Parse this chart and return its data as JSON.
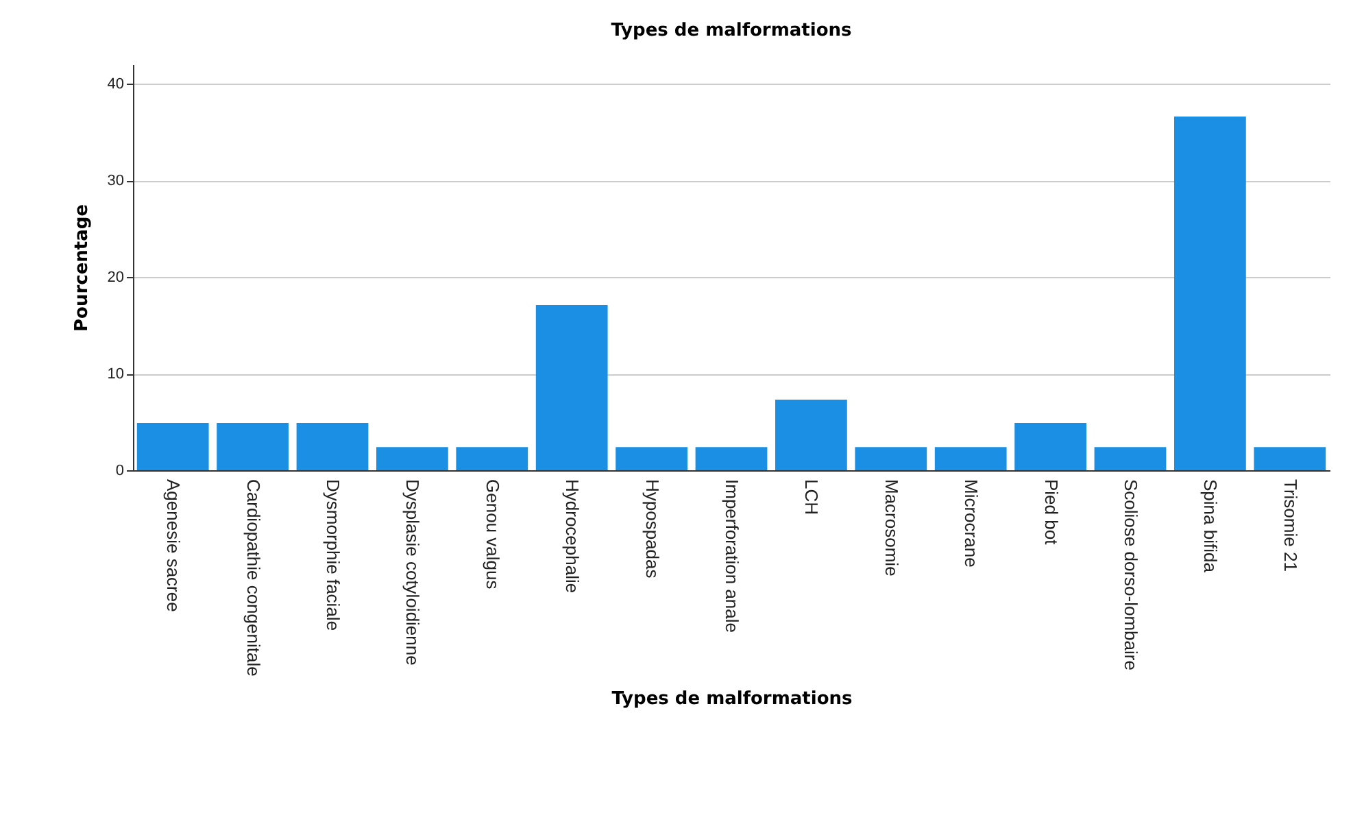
{
  "chart_data": {
    "type": "bar",
    "title": "Types de malformations",
    "xlabel": "Types de malformations",
    "ylabel": "Pourcentage",
    "categories": [
      "Agenesie sacree",
      "Cardiopathie congenitale",
      "Dysmorphie faciale",
      "Dysplasie cotyloidienne",
      "Genou valgus",
      "Hydrocephalie",
      "Hypospadas",
      "Imperforation anale",
      "LCH",
      "Macrosomie",
      "Microcrane",
      "Pied bot",
      "Scoliose dorso-lombaire",
      "Spina bifida",
      "Trisomie 21"
    ],
    "values": [
      4.9,
      4.9,
      4.9,
      2.4,
      2.4,
      17.1,
      2.4,
      2.4,
      7.3,
      2.4,
      2.4,
      4.9,
      2.4,
      36.6,
      2.4
    ],
    "color": "#1a8fe3",
    "ylim": [
      0,
      42
    ],
    "yticks": [
      0,
      10,
      20,
      30,
      40
    ],
    "grid": "y"
  }
}
